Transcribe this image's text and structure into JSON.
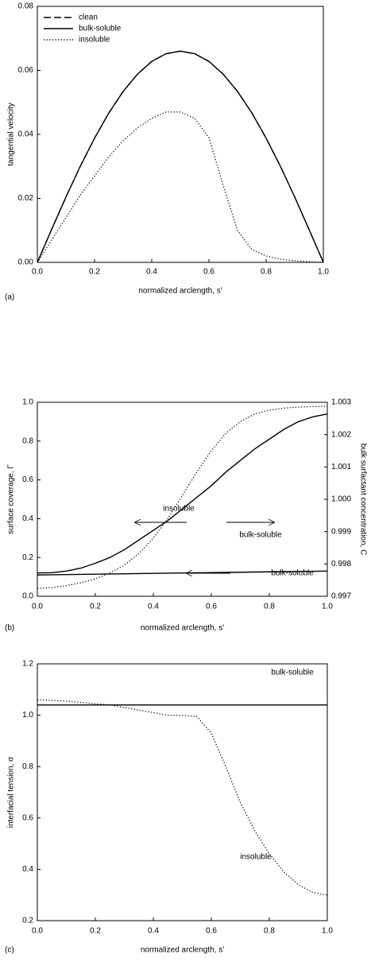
{
  "chart_data": [
    {
      "type": "line",
      "panel_label": "(a)",
      "xlabel": "normalized arclength, s′",
      "ylabel": "tangential velocity",
      "legend": "upper left",
      "grid": false,
      "x": [
        0,
        0.05,
        0.1,
        0.15,
        0.2,
        0.25,
        0.3,
        0.35,
        0.4,
        0.45,
        0.5,
        0.55,
        0.6,
        0.65,
        0.7,
        0.75,
        0.8,
        0.85,
        0.9,
        0.95,
        1
      ],
      "series": [
        {
          "name": "clean",
          "color": "#000000",
          "style": "dashed",
          "values": [
            0,
            0.0103,
            0.0204,
            0.03,
            0.0388,
            0.0467,
            0.0534,
            0.0588,
            0.0628,
            0.0652,
            0.066,
            0.0652,
            0.0628,
            0.0588,
            0.0534,
            0.0467,
            0.0388,
            0.03,
            0.0204,
            0.0103,
            0
          ]
        },
        {
          "name": "bulk-soluble",
          "color": "#000000",
          "style": "solid",
          "values": [
            0,
            0.0103,
            0.0204,
            0.03,
            0.0388,
            0.0467,
            0.0534,
            0.0588,
            0.0628,
            0.0652,
            0.066,
            0.0652,
            0.0628,
            0.0588,
            0.0534,
            0.0467,
            0.0388,
            0.03,
            0.0204,
            0.0103,
            0
          ]
        },
        {
          "name": "insoluble",
          "color": "#000000",
          "style": "dotted",
          "values": [
            0,
            0.007,
            0.014,
            0.021,
            0.027,
            0.033,
            0.038,
            0.042,
            0.045,
            0.047,
            0.047,
            0.045,
            0.039,
            0.024,
            0.01,
            0.004,
            0.002,
            0.001,
            0.0005,
            0.0002,
            0
          ]
        }
      ],
      "xlim": [
        0,
        1
      ],
      "xticks": [
        {
          "value": 0,
          "label": "0.0"
        },
        0.2,
        0.4,
        0.6,
        0.8,
        {
          "value": 1,
          "label": "1.0"
        }
      ],
      "ylim": [
        0,
        0.08
      ],
      "yticks": [
        {
          "value": 0,
          "label": "0.00"
        },
        0.02,
        0.04,
        0.06,
        {
          "value": 0.08,
          "label": "0.08"
        }
      ]
    },
    {
      "type": "line",
      "panel_label": "(b)",
      "xlabel": "normalized arclength, s′",
      "ylabel": "surface coverage, Γ",
      "y2label": "bulk surfactant concentration, C",
      "legend": false,
      "grid": false,
      "x": [
        0,
        0.05,
        0.1,
        0.15,
        0.2,
        0.25,
        0.3,
        0.35,
        0.4,
        0.45,
        0.5,
        0.55,
        0.6,
        0.65,
        0.7,
        0.75,
        0.8,
        0.85,
        0.9,
        0.95,
        1
      ],
      "series": [
        {
          "name": "insoluble",
          "color": "#000000",
          "style": "dotted",
          "values": [
            0.04,
            0.045,
            0.055,
            0.07,
            0.09,
            0.12,
            0.16,
            0.22,
            0.3,
            0.4,
            0.52,
            0.64,
            0.75,
            0.84,
            0.9,
            0.94,
            0.96,
            0.97,
            0.975,
            0.978,
            0.98
          ]
        },
        {
          "name": "bulk-soluble",
          "color": "#000000",
          "style": "solid",
          "values": [
            0.11,
            0.111,
            0.112,
            0.113,
            0.114,
            0.115,
            0.116,
            0.117,
            0.118,
            0.119,
            0.12,
            0.121,
            0.122,
            0.123,
            0.124,
            0.125,
            0.126,
            0.127,
            0.128,
            0.129,
            0.13
          ]
        },
        {
          "name": "bulk-soluble",
          "color": "#000000",
          "style": "solid",
          "axis": "y2",
          "values": [
            0.99772,
            0.99773,
            0.99778,
            0.99787,
            0.99802,
            0.9982,
            0.99844,
            0.99874,
            0.99904,
            0.99934,
            0.9997,
            1.00006,
            1.00042,
            1.00084,
            1.0012,
            1.00156,
            1.00186,
            1.00216,
            1.0024,
            1.00255,
            1.00264
          ]
        }
      ],
      "xlim": [
        0,
        1
      ],
      "xticks": [
        {
          "value": 0,
          "label": "0.0"
        },
        0.2,
        0.4,
        0.6,
        0.8,
        {
          "value": 1,
          "label": "1.0"
        }
      ],
      "ylim": [
        0,
        1
      ],
      "yticks": [
        {
          "value": 0,
          "label": "0.0"
        },
        0.2,
        0.4,
        0.6,
        0.8,
        {
          "value": 1,
          "label": "1.0"
        }
      ],
      "y2lim": [
        0.997,
        1.003
      ],
      "y2ticks": [
        0.997,
        0.998,
        0.999,
        {
          "value": 1,
          "label": "1.000"
        },
        1.001,
        1.002,
        1.003
      ]
    },
    {
      "type": "line",
      "panel_label": "(c)",
      "xlabel": "normalized arclength, s′",
      "ylabel": "interfacial tension, σ",
      "legend": false,
      "grid": false,
      "x": [
        0,
        0.05,
        0.1,
        0.15,
        0.2,
        0.25,
        0.3,
        0.35,
        0.4,
        0.45,
        0.5,
        0.55,
        0.6,
        0.65,
        0.7,
        0.75,
        0.8,
        0.85,
        0.9,
        0.95,
        1
      ],
      "series": [
        {
          "name": "bulk-soluble",
          "color": "#000000",
          "style": "solid",
          "values": [
            1.04,
            1.04,
            1.04,
            1.04,
            1.04,
            1.04,
            1.04,
            1.04,
            1.04,
            1.04,
            1.04,
            1.04,
            1.04,
            1.04,
            1.04,
            1.04,
            1.04,
            1.04,
            1.04,
            1.04,
            1.04
          ]
        },
        {
          "name": "insoluble",
          "color": "#000000",
          "style": "dotted",
          "values": [
            1.06,
            1.058,
            1.055,
            1.05,
            1.045,
            1.04,
            1.03,
            1.02,
            1.01,
            1.0,
            1.0,
            0.995,
            0.93,
            0.8,
            0.66,
            0.55,
            0.46,
            0.39,
            0.34,
            0.31,
            0.3
          ]
        }
      ],
      "xlim": [
        0,
        1
      ],
      "xticks": [
        {
          "value": 0,
          "label": "0.0"
        },
        0.2,
        0.4,
        0.6,
        0.8,
        {
          "value": 1,
          "label": "1.0"
        }
      ],
      "ylim": [
        0.2,
        1.2
      ],
      "yticks": [
        0.2,
        0.4,
        0.6,
        0.8,
        {
          "value": 1,
          "label": "1.0"
        },
        1.2
      ]
    }
  ]
}
